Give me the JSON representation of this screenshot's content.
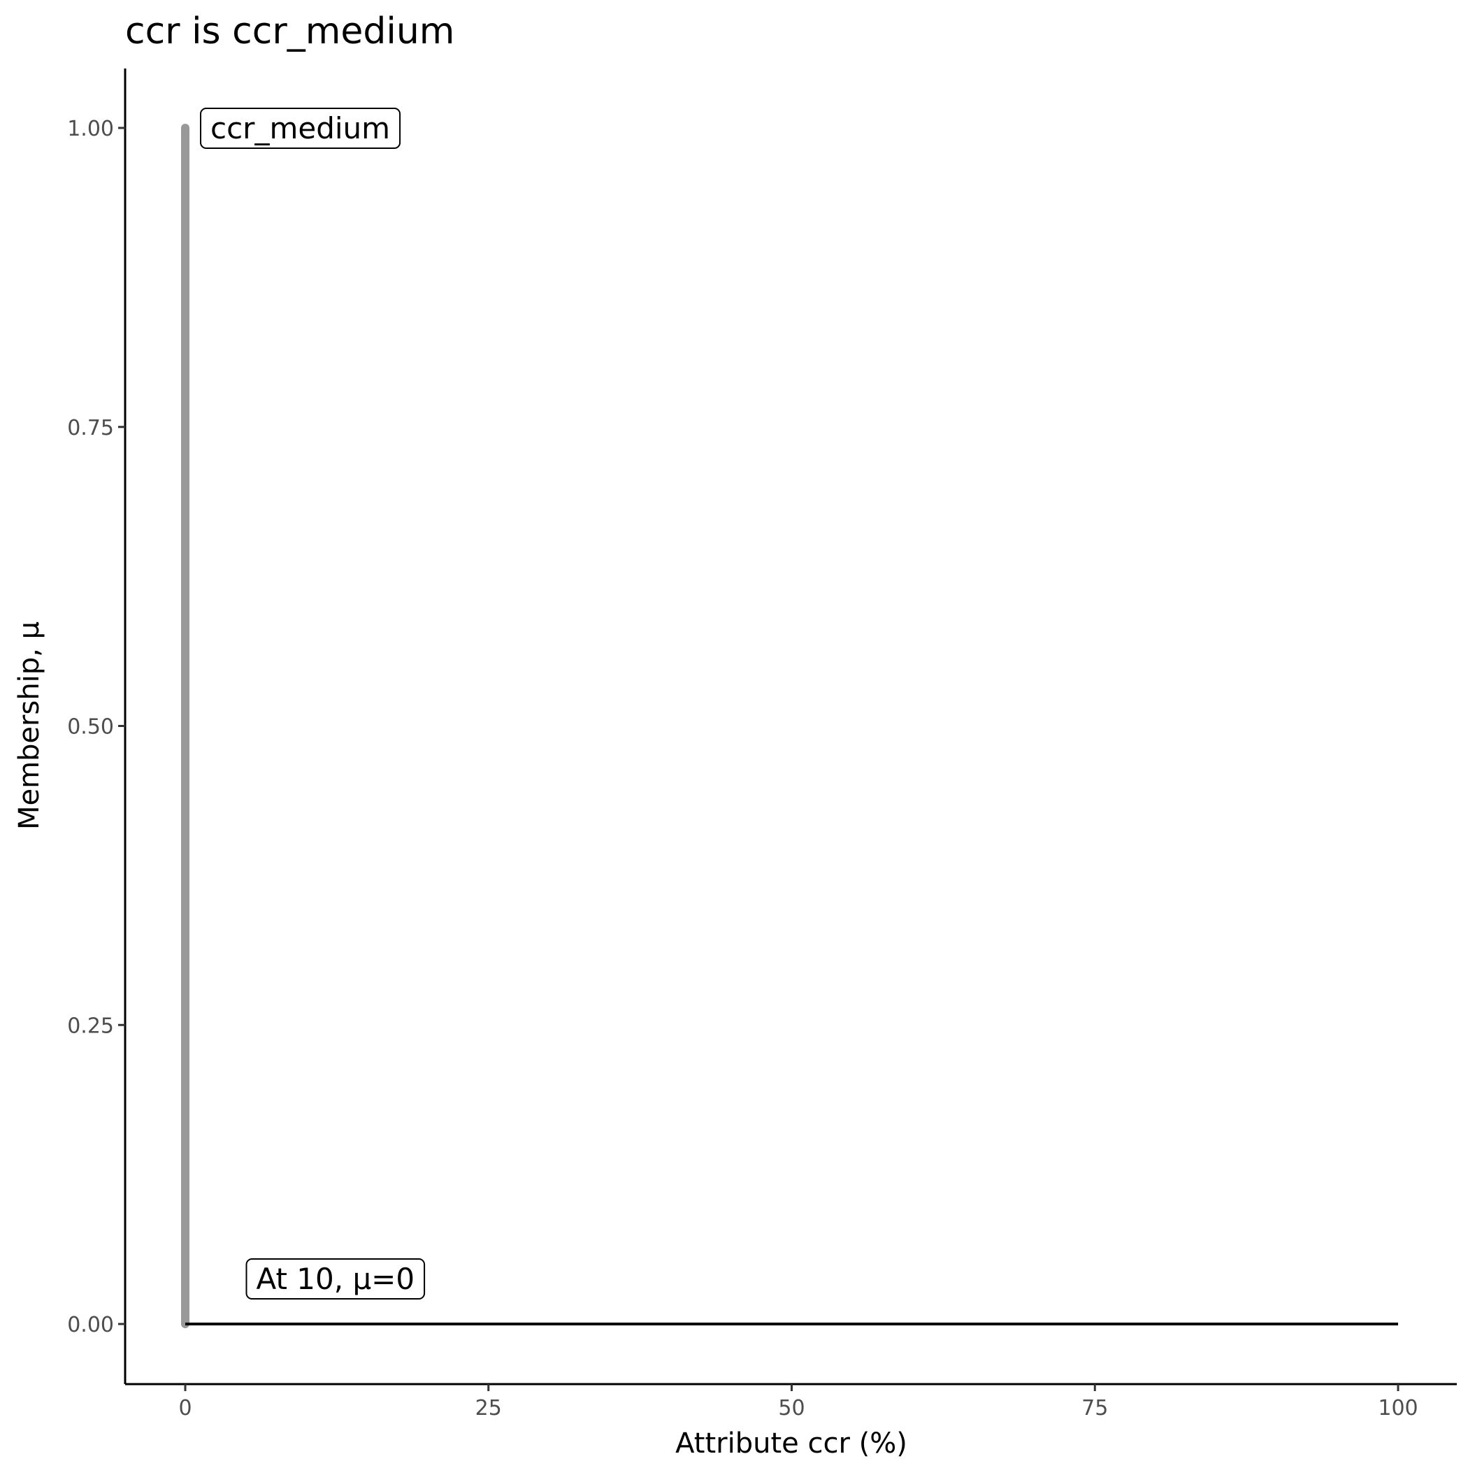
{
  "chart_data": {
    "type": "line",
    "title": "ccr is ccr_medium",
    "xlabel": "Attribute ccr (%)",
    "ylabel": "Membership, μ",
    "xlim": [
      -5,
      105
    ],
    "ylim": [
      -0.05,
      1.05
    ],
    "x_ticks": [
      0,
      25,
      50,
      75,
      100
    ],
    "x_tick_labels": [
      "0",
      "25",
      "50",
      "75",
      "100"
    ],
    "y_ticks": [
      0,
      0.25,
      0.5,
      0.75,
      1
    ],
    "y_tick_labels": [
      "0.00",
      "0.25",
      "0.50",
      "0.75",
      "1.00"
    ],
    "grid": false,
    "series": [
      {
        "x": [
          0,
          0
        ],
        "y": [
          0,
          1
        ],
        "color": "#999999"
      },
      {
        "x": [
          0,
          100
        ],
        "y": [
          0,
          0
        ],
        "color": "#000000"
      }
    ],
    "annotations": [
      {
        "text": "ccr_medium",
        "x": 0,
        "y": 1
      },
      {
        "text": "At 10, μ=0",
        "x": 10,
        "y": 0
      }
    ]
  }
}
